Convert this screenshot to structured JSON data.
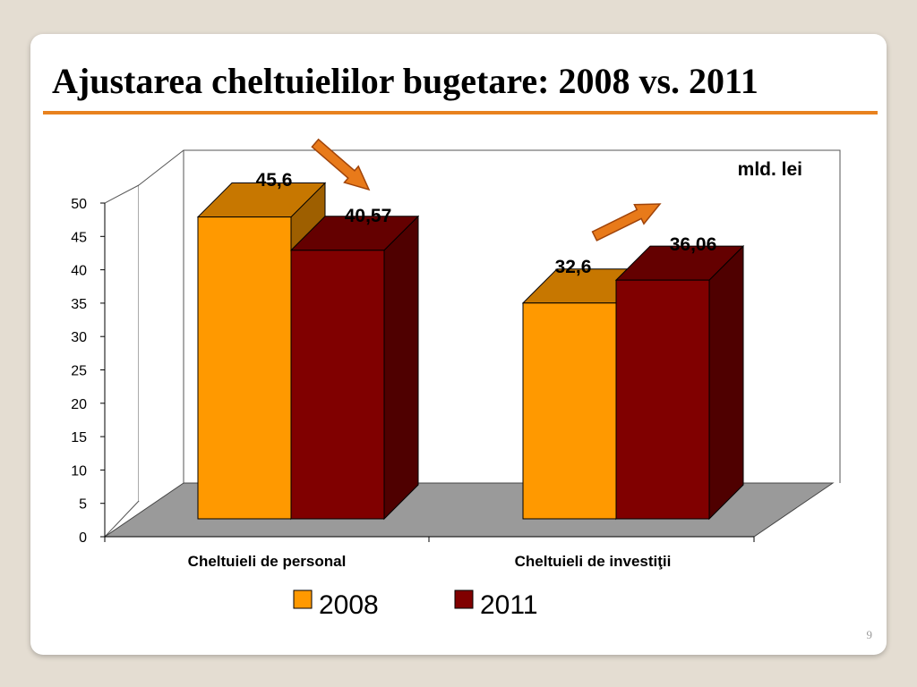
{
  "slide": {
    "title": "Ajustarea cheltuielilor bugetare: 2008 vs. 2011",
    "number": "9"
  },
  "colors": {
    "accent": "#e8821e",
    "series_2008": "#ff9900",
    "series_2011": "#800000",
    "arrow": "#e87a1a"
  },
  "chart_data": {
    "type": "bar",
    "style": "3d-clustered-column",
    "unit_label": "mld. lei",
    "categories": [
      "Cheltuieli de personal",
      "Cheltuieli de investiţii"
    ],
    "series": [
      {
        "name": "2008",
        "values": [
          45.6,
          32.6
        ],
        "labels": [
          "45,6",
          "32,6"
        ],
        "color": "#ff9900"
      },
      {
        "name": "2011",
        "values": [
          40.57,
          36.06
        ],
        "labels": [
          "40,57",
          "36,06"
        ],
        "color": "#800000"
      }
    ],
    "y_ticks": [
      "0",
      "5",
      "10",
      "15",
      "20",
      "25",
      "30",
      "35",
      "40",
      "45",
      "50"
    ],
    "ylim": [
      0,
      50
    ],
    "grid": false,
    "legend_position": "bottom",
    "annotations": [
      {
        "type": "arrow",
        "direction": "down-right",
        "category": "Cheltuieli de personal",
        "meaning": "decrease"
      },
      {
        "type": "arrow",
        "direction": "up-right",
        "category": "Cheltuieli de investiţii",
        "meaning": "increase"
      }
    ]
  }
}
